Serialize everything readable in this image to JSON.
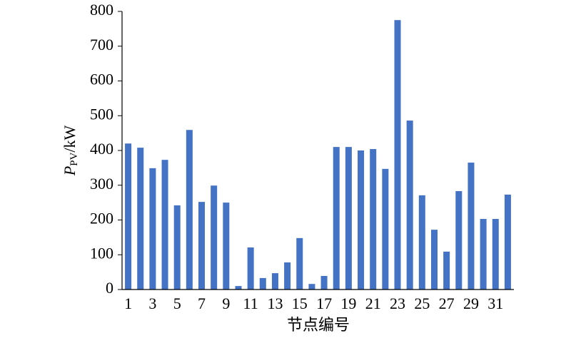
{
  "chart_data": {
    "type": "bar",
    "y_label": {
      "symbol": "P",
      "subscript": "PV",
      "unit": "/kW"
    },
    "x_label": "节点编号",
    "categories": [
      "1",
      null,
      "3",
      null,
      "5",
      null,
      "7",
      null,
      "9",
      null,
      "11",
      null,
      "13",
      null,
      "15",
      null,
      "17",
      null,
      "19",
      null,
      "21",
      null,
      "23",
      null,
      "25",
      null,
      "27",
      null,
      "29",
      null,
      "31",
      null
    ],
    "values": [
      420,
      408,
      349,
      373,
      242,
      459,
      252,
      299,
      250,
      10,
      121,
      33,
      47,
      78,
      148,
      16,
      39,
      410,
      410,
      400,
      404,
      347,
      775,
      486,
      271,
      172,
      109,
      283,
      365,
      203,
      203,
      273
    ],
    "color": "#4472c4",
    "ylim": [
      0,
      800
    ],
    "yticks": [
      0,
      100,
      200,
      300,
      400,
      500,
      600,
      700,
      800
    ]
  }
}
